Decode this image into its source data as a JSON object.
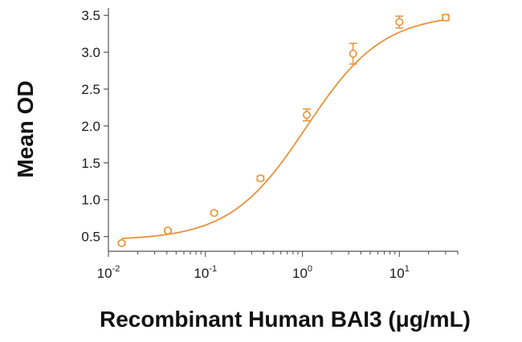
{
  "chart_data": {
    "type": "scatter",
    "title": "",
    "xlabel": "Recombinant Human BAI3 (μg/mL)",
    "ylabel": "Mean OD",
    "x_scale": "log",
    "xlim": [
      0.01,
      40
    ],
    "ylim": [
      0.3,
      3.6
    ],
    "x_ticks": [
      {
        "value": 0.01,
        "base": "10",
        "exp": "-2"
      },
      {
        "value": 0.1,
        "base": "10",
        "exp": "-1"
      },
      {
        "value": 1,
        "base": "10",
        "exp": "0"
      },
      {
        "value": 10,
        "base": "10",
        "exp": "1"
      }
    ],
    "y_ticks": [
      "0.5",
      "1.0",
      "1.5",
      "2.0",
      "2.5",
      "3.0",
      "3.5"
    ],
    "grid": false,
    "color": "#e8923a",
    "series": [
      {
        "x": [
          0.0137,
          0.041,
          0.123,
          0.37,
          1.11,
          3.33,
          10,
          30
        ],
        "y": [
          0.41,
          0.58,
          0.82,
          1.29,
          2.15,
          2.98,
          3.41,
          3.47
        ],
        "yerr": [
          0.02,
          0.02,
          0.02,
          0.03,
          0.08,
          0.14,
          0.08,
          0.04
        ]
      }
    ],
    "fit_curve": {
      "type": "4PL",
      "bottom": 0.45,
      "top": 3.52,
      "ec50": 1.1,
      "hill": 1.1
    }
  }
}
